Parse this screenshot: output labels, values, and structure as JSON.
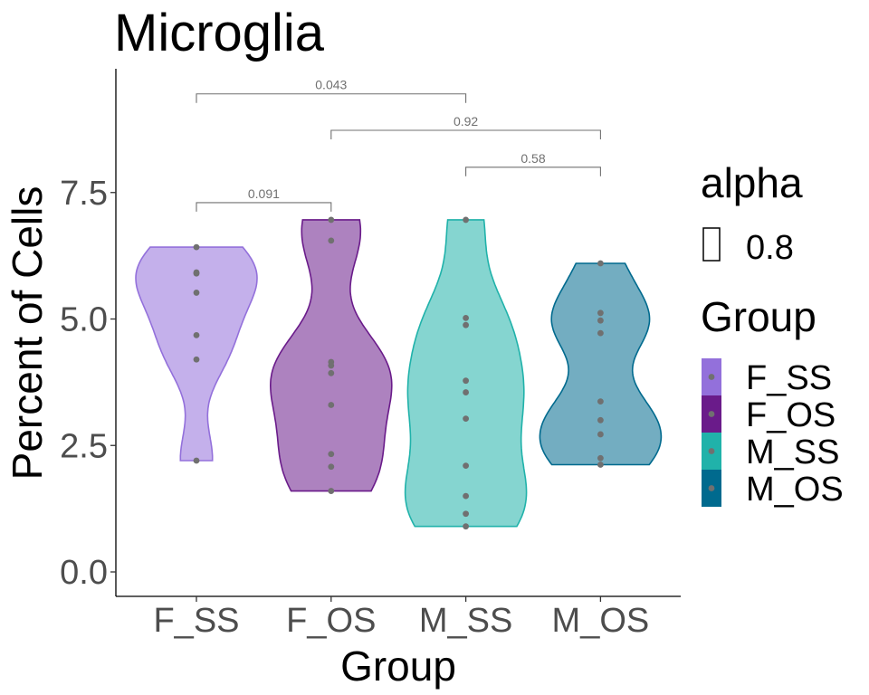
{
  "chart_data": {
    "type": "violin",
    "title": "Microglia",
    "xlabel": "Group",
    "ylabel": "Percent of Cells",
    "categories": [
      "F_SS",
      "F_OS",
      "M_SS",
      "M_OS"
    ],
    "ylim": [
      -0.5,
      10.2
    ],
    "yticks": [
      "0.0",
      "2.5",
      "5.0",
      "7.5"
    ],
    "ytick_values": [
      0,
      2.5,
      5,
      7.5
    ],
    "grid": false,
    "legend_position": "right",
    "series": [
      {
        "name": "F_SS",
        "color": "#9370DB",
        "values": [
          6.42,
          5.92,
          5.9,
          5.52,
          4.68,
          4.2,
          2.2
        ],
        "range": [
          2.2,
          6.42
        ]
      },
      {
        "name": "F_OS",
        "color": "#6A1B8A",
        "values": [
          6.96,
          6.55,
          4.15,
          4.08,
          3.93,
          3.3,
          2.33,
          2.08,
          1.6
        ],
        "range": [
          1.6,
          6.96
        ]
      },
      {
        "name": "M_SS",
        "color": "#20B2AA",
        "values": [
          6.96,
          5.02,
          4.88,
          3.78,
          3.55,
          3.03,
          2.1,
          1.5,
          1.15,
          0.9
        ],
        "range": [
          0.9,
          6.96
        ]
      },
      {
        "name": "M_OS",
        "color": "#006A8E",
        "values": [
          6.1,
          5.12,
          4.97,
          4.72,
          3.37,
          3.0,
          2.72,
          2.25,
          2.12
        ],
        "range": [
          2.12,
          6.1
        ]
      }
    ],
    "comparisons": [
      {
        "group1": "F_SS",
        "group2": "F_OS",
        "p_label": "0.091",
        "y": 7.3
      },
      {
        "group1": "F_SS",
        "group2": "M_SS",
        "p_label": "0.043",
        "y": 9.45
      },
      {
        "group1": "F_OS",
        "group2": "M_OS",
        "p_label": "0.92",
        "y": 8.73
      },
      {
        "group1": "M_SS",
        "group2": "M_OS",
        "p_label": "0.58",
        "y": 8.0
      }
    ],
    "legend": {
      "alpha_title": "alpha",
      "alpha_label": "0.8",
      "group_title": "Group",
      "group_labels": [
        "F_SS",
        "F_OS",
        "M_SS",
        "M_OS"
      ]
    },
    "point_color": "#707070",
    "fill_alpha": 0.55
  }
}
